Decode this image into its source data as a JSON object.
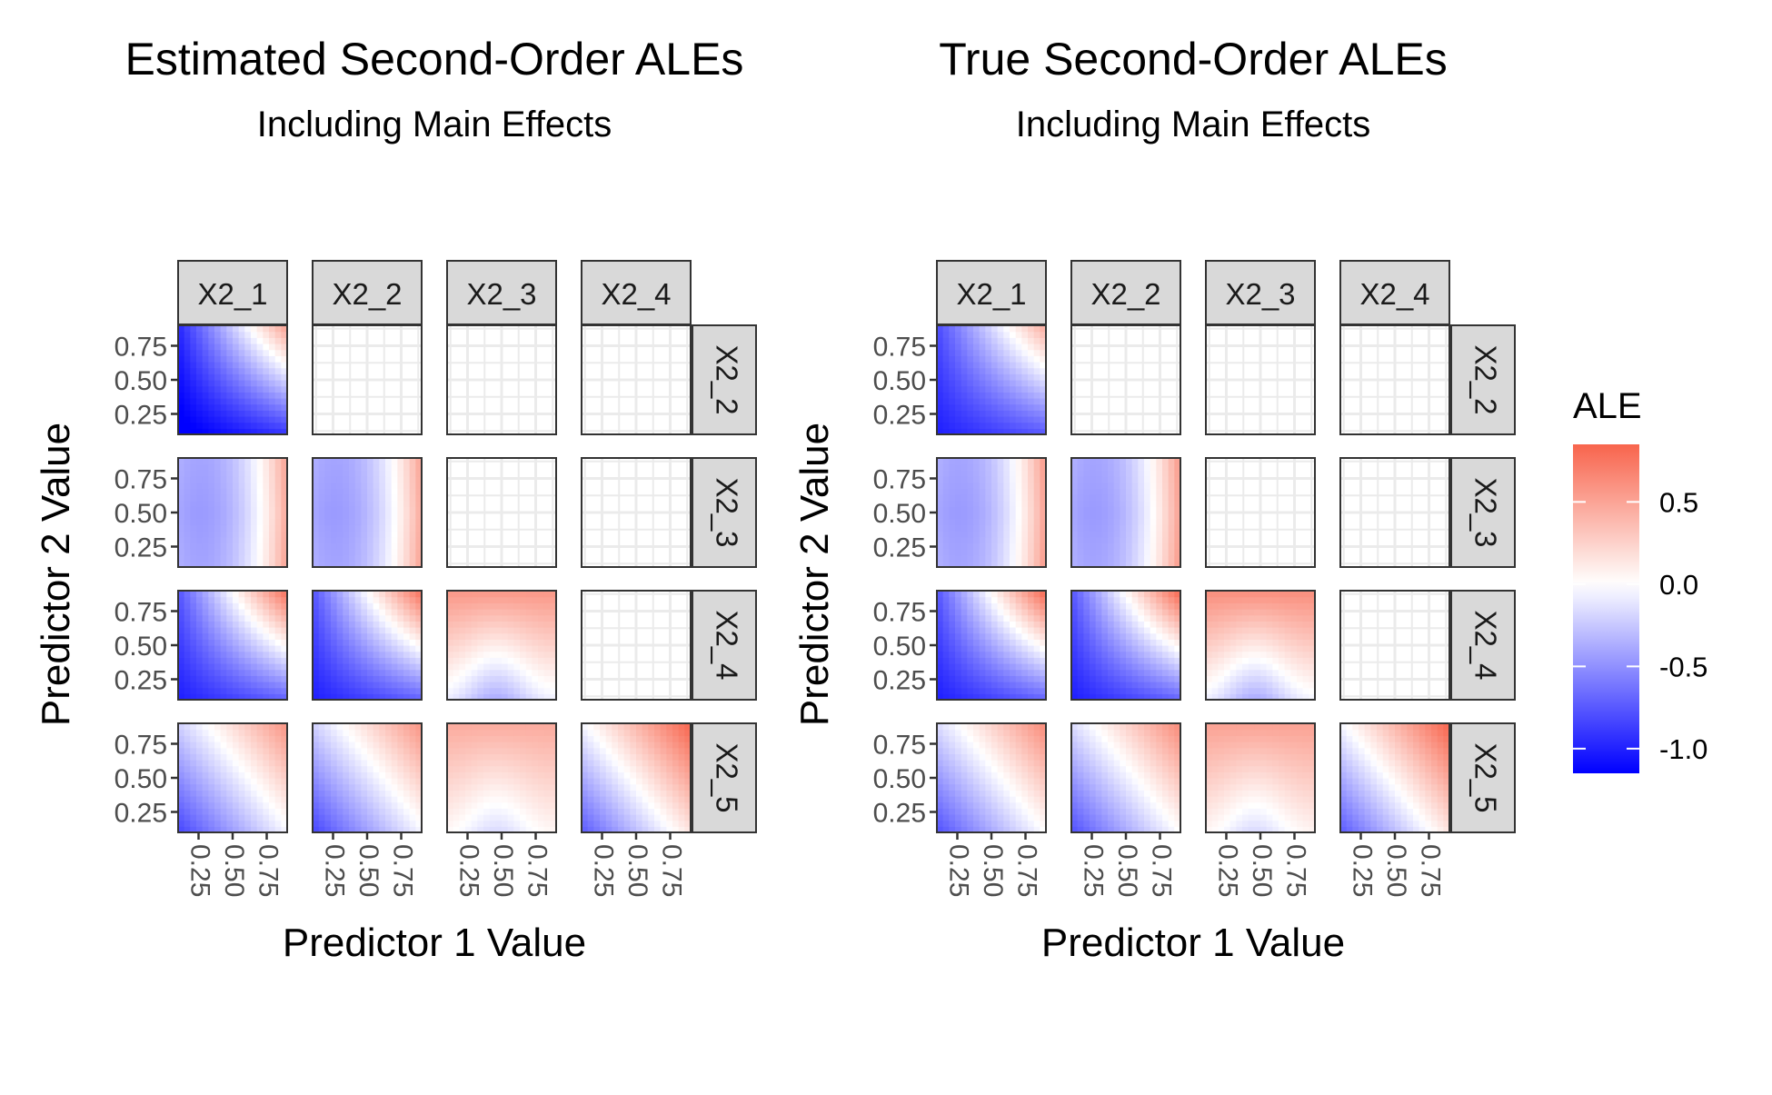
{
  "chart_data": [
    {
      "type": "heatmap",
      "title": "Estimated Second-Order ALEs",
      "subtitle": "Including Main Effects",
      "xlabel": "Predictor 1 Value",
      "ylabel": "Predictor 2 Value",
      "facet_columns": [
        "X2_1",
        "X2_2",
        "X2_3",
        "X2_4"
      ],
      "facet_rows": [
        "X2_2",
        "X2_3",
        "X2_4",
        "X2_5"
      ],
      "x_ticks": [
        "0.25",
        "0.50",
        "0.75"
      ],
      "y_ticks": [
        "0.25",
        "0.50",
        "0.75"
      ],
      "x_range": [
        0.1,
        0.9
      ],
      "y_range": [
        0.1,
        0.9
      ],
      "grid": true,
      "panels": [
        {
          "row": "X2_2",
          "col": "X2_1",
          "type": "interaction",
          "min": -1.2,
          "max": 0.45
        },
        {
          "row": "X2_3",
          "col": "X2_1",
          "type": "quadratic",
          "min": -0.45,
          "max": 0.45
        },
        {
          "row": "X2_3",
          "col": "X2_2",
          "type": "quadratic",
          "min": -0.45,
          "max": 0.45
        },
        {
          "row": "X2_4",
          "col": "X2_1",
          "type": "interaction",
          "min": -1.0,
          "max": 0.7
        },
        {
          "row": "X2_4",
          "col": "X2_2",
          "type": "interaction",
          "min": -1.0,
          "max": 0.7
        },
        {
          "row": "X2_4",
          "col": "X2_3",
          "type": "arch",
          "min": -0.35,
          "max": 0.55
        },
        {
          "row": "X2_5",
          "col": "X2_1",
          "type": "additive",
          "min": -0.8,
          "max": 0.55
        },
        {
          "row": "X2_5",
          "col": "X2_2",
          "type": "additive",
          "min": -0.8,
          "max": 0.55
        },
        {
          "row": "X2_5",
          "col": "X2_3",
          "type": "arch",
          "min": -0.15,
          "max": 0.45
        },
        {
          "row": "X2_5",
          "col": "X2_4",
          "type": "additive",
          "min": -0.7,
          "max": 0.8
        }
      ]
    },
    {
      "type": "heatmap",
      "title": "True Second-Order ALEs",
      "subtitle": "Including Main Effects",
      "xlabel": "Predictor 1 Value",
      "ylabel": "Predictor 2 Value",
      "facet_columns": [
        "X2_1",
        "X2_2",
        "X2_3",
        "X2_4"
      ],
      "facet_rows": [
        "X2_2",
        "X2_3",
        "X2_4",
        "X2_5"
      ],
      "x_ticks": [
        "0.25",
        "0.50",
        "0.75"
      ],
      "y_ticks": [
        "0.25",
        "0.50",
        "0.75"
      ],
      "x_range": [
        0.1,
        0.9
      ],
      "y_range": [
        0.1,
        0.9
      ],
      "grid": true,
      "panels": [
        {
          "row": "X2_2",
          "col": "X2_1",
          "type": "interaction",
          "min": -1.0,
          "max": 0.4
        },
        {
          "row": "X2_3",
          "col": "X2_1",
          "type": "quadratic",
          "min": -0.45,
          "max": 0.5
        },
        {
          "row": "X2_3",
          "col": "X2_2",
          "type": "quadratic",
          "min": -0.45,
          "max": 0.5
        },
        {
          "row": "X2_4",
          "col": "X2_1",
          "type": "interaction",
          "min": -1.0,
          "max": 0.75
        },
        {
          "row": "X2_4",
          "col": "X2_2",
          "type": "interaction",
          "min": -1.0,
          "max": 0.75
        },
        {
          "row": "X2_4",
          "col": "X2_3",
          "type": "arch",
          "min": -0.35,
          "max": 0.6
        },
        {
          "row": "X2_5",
          "col": "X2_1",
          "type": "additive",
          "min": -0.75,
          "max": 0.6
        },
        {
          "row": "X2_5",
          "col": "X2_2",
          "type": "additive",
          "min": -0.75,
          "max": 0.6
        },
        {
          "row": "X2_5",
          "col": "X2_3",
          "type": "arch",
          "min": -0.15,
          "max": 0.5
        },
        {
          "row": "X2_5",
          "col": "X2_4",
          "type": "additive",
          "min": -0.7,
          "max": 0.8
        }
      ]
    }
  ],
  "legend": {
    "title": "ALE",
    "ticks": [
      "0.5",
      "0.0",
      "-0.5",
      "-1.0"
    ],
    "tick_values": [
      0.5,
      0.0,
      -0.5,
      -1.0
    ],
    "range": [
      -1.15,
      0.85
    ],
    "colors": {
      "low": "#0000ff",
      "mid": "#ffffff",
      "high": "#f8644c"
    }
  },
  "colors": {
    "strip_fill": "#d9d9d9",
    "panel_border": "#333333",
    "grid": "#ebebeb",
    "text": "#000000",
    "tick_text": "#4d4d4d"
  }
}
